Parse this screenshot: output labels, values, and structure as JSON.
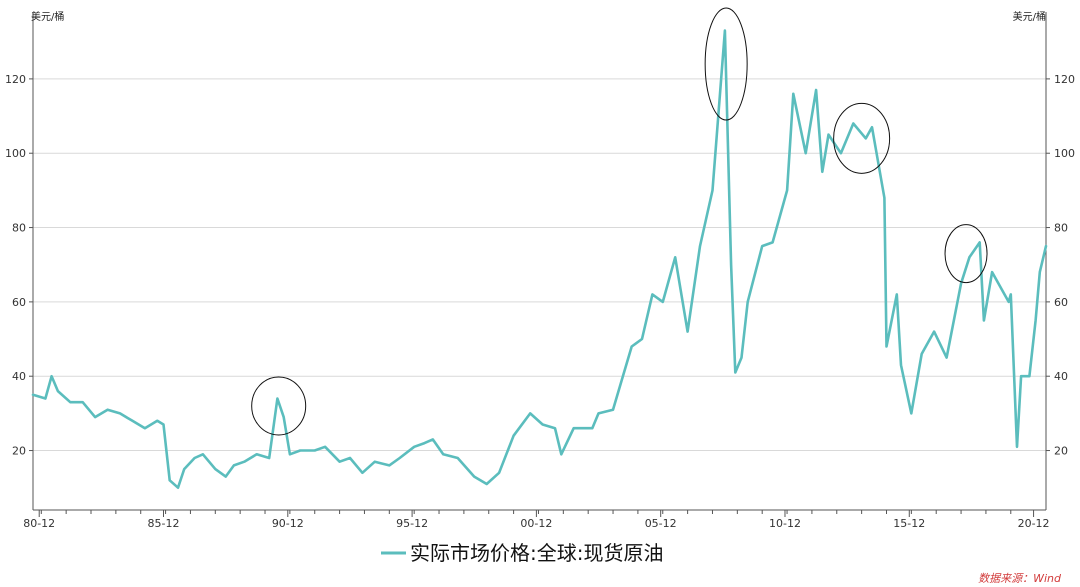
{
  "chart_data": {
    "type": "line",
    "title": "",
    "xlabel": "",
    "ylabel": "美元/桶",
    "ylabel_right": "美元/桶",
    "x_ticks": [
      "80-12",
      "85-12",
      "90-12",
      "95-12",
      "00-12",
      "05-12",
      "10-12",
      "15-12",
      "20-12"
    ],
    "y_ticks": [
      20,
      40,
      60,
      80,
      100,
      120
    ],
    "xlim": [
      "1980-09",
      "2021-06"
    ],
    "ylim": [
      4,
      138
    ],
    "grid": "horizontal",
    "legend_position": "bottom-center",
    "series": [
      {
        "name": "实际市场价格:全球:现货原油",
        "color": "#5bbdbd",
        "x": [
          "1980-09",
          "1981-03",
          "1981-06",
          "1981-09",
          "1982-03",
          "1982-09",
          "1983-03",
          "1983-09",
          "1984-03",
          "1984-09",
          "1985-03",
          "1985-09",
          "1985-12",
          "1986-03",
          "1986-07",
          "1986-10",
          "1987-03",
          "1987-07",
          "1988-01",
          "1988-06",
          "1988-10",
          "1989-03",
          "1989-09",
          "1990-03",
          "1990-07",
          "1990-10",
          "1991-01",
          "1991-06",
          "1992-01",
          "1992-06",
          "1993-01",
          "1993-06",
          "1993-12",
          "1994-06",
          "1995-01",
          "1995-06",
          "1996-01",
          "1996-06",
          "1996-10",
          "1997-03",
          "1997-10",
          "1998-06",
          "1998-12",
          "1999-06",
          "2000-01",
          "2000-09",
          "2001-03",
          "2001-09",
          "2001-12",
          "2002-06",
          "2003-03",
          "2003-06",
          "2004-01",
          "2004-10",
          "2005-03",
          "2005-08",
          "2006-01",
          "2006-07",
          "2007-01",
          "2007-07",
          "2008-01",
          "2008-07",
          "2008-10",
          "2008-12",
          "2009-03",
          "2009-06",
          "2010-01",
          "2010-06",
          "2011-01",
          "2011-04",
          "2011-10",
          "2012-03",
          "2012-06",
          "2012-09",
          "2013-03",
          "2013-09",
          "2014-03",
          "2014-06",
          "2014-12",
          "2015-01",
          "2015-06",
          "2015-08",
          "2016-01",
          "2016-06",
          "2016-12",
          "2017-06",
          "2018-01",
          "2018-05",
          "2018-10",
          "2018-12",
          "2019-04",
          "2019-12",
          "2020-01",
          "2020-04",
          "2020-06",
          "2020-10",
          "2021-01",
          "2021-03",
          "2021-06"
        ],
        "values": [
          35,
          34,
          40,
          36,
          33,
          33,
          29,
          31,
          30,
          28,
          26,
          28,
          27,
          12,
          10,
          15,
          18,
          19,
          15,
          13,
          16,
          17,
          19,
          18,
          34,
          29,
          19,
          20,
          20,
          21,
          17,
          18,
          14,
          17,
          16,
          18,
          21,
          22,
          23,
          19,
          18,
          13,
          11,
          14,
          24,
          30,
          27,
          26,
          19,
          26,
          26,
          30,
          31,
          48,
          50,
          62,
          60,
          72,
          52,
          75,
          90,
          133,
          70,
          41,
          45,
          60,
          75,
          76,
          90,
          116,
          100,
          117,
          95,
          105,
          100,
          108,
          104,
          107,
          88,
          48,
          62,
          43,
          30,
          46,
          52,
          45,
          65,
          72,
          76,
          55,
          68,
          60,
          62,
          21,
          40,
          40,
          55,
          68,
          75
        ]
      }
    ],
    "annotations": [
      "ellipse: 1990 peak",
      "ellipse: 2008 peak",
      "ellipse: 2014 peak",
      "ellipse: 2018 peak"
    ]
  },
  "legend": {
    "label": "实际市场价格:全球:现货原油"
  },
  "source": {
    "text": "数据来源：Wind"
  }
}
